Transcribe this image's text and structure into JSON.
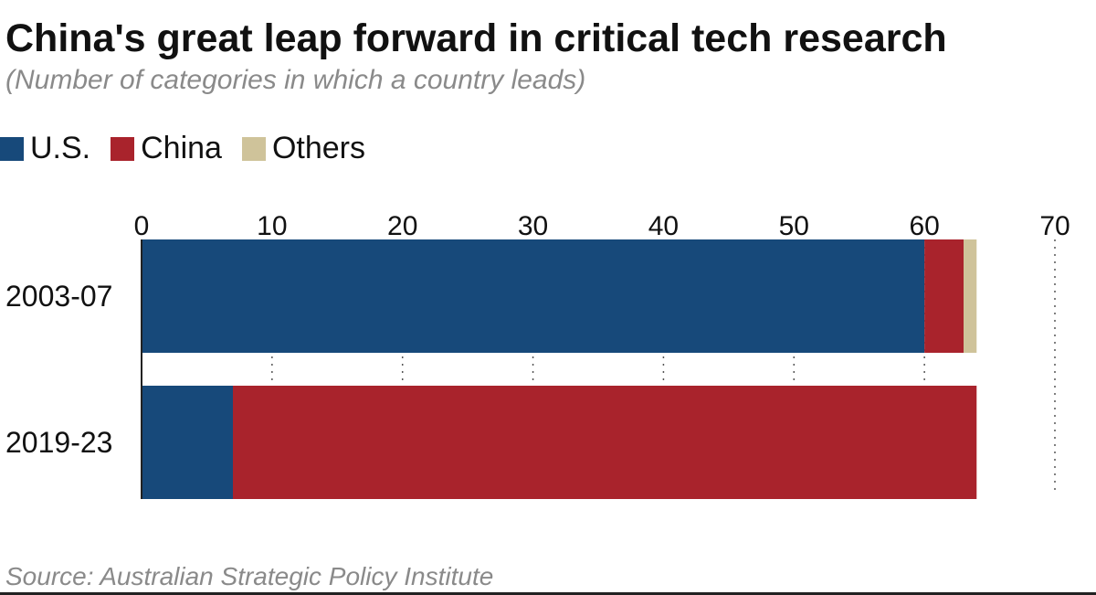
{
  "colors": {
    "us": "#17497a",
    "china": "#a9232c",
    "others": "#cfc39a"
  },
  "chart_data": {
    "type": "bar",
    "orientation": "horizontal",
    "stacked": true,
    "title": "China's great leap forward in critical tech research",
    "subtitle": "(Number of categories in which a country leads)",
    "categories": [
      "2003-07",
      "2019-23"
    ],
    "series": [
      {
        "name": "U.S.",
        "values": [
          60,
          7
        ]
      },
      {
        "name": "China",
        "values": [
          3,
          57
        ]
      },
      {
        "name": "Others",
        "values": [
          1,
          0
        ]
      }
    ],
    "xlim": [
      0,
      70
    ],
    "xticks": [
      "0",
      "10",
      "20",
      "30",
      "40",
      "50",
      "60",
      "70"
    ],
    "grid": "vertical dotted",
    "legend_position": "top-left",
    "source": "Source: Australian Strategic Policy Institute"
  }
}
